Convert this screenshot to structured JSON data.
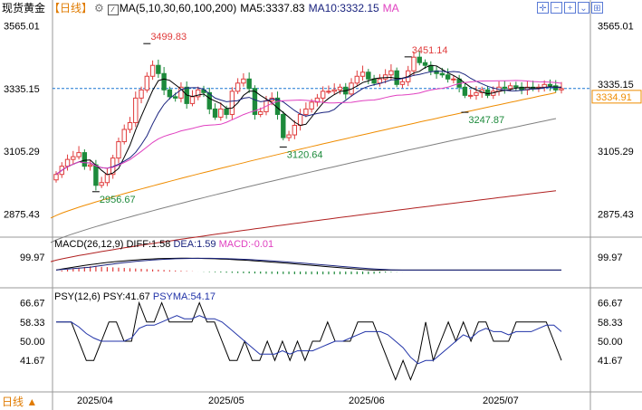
{
  "header": {
    "symbol": "现货黄金",
    "period_tag": "【日线】",
    "ma_label": "MA(5,10,30,60,100,200)",
    "ma5": "MA5:3337.83",
    "ma10": "MA10:3332.15",
    "ma_more": "MA",
    "icons": [
      "crosshair-icon",
      "minus-icon",
      "plus-icon",
      "dropdown-icon",
      "grid-icon"
    ]
  },
  "colors": {
    "up": "#e03c3c",
    "down": "#1d8a3b",
    "ma5": "#000000",
    "ma10": "#1a237e",
    "ma30": "#e040c0",
    "ma60": "#ef8c00",
    "ma100": "#808080",
    "ma200": "#b02020",
    "psy": "#000000",
    "psyma": "#2133a8",
    "dea": "#1a237e",
    "diff": "#000000"
  },
  "price_axis": {
    "ticks": [
      "3565.01",
      "3335.15",
      "3105.29",
      "2875.43"
    ],
    "current": "3334.91",
    "ref": "3335.15"
  },
  "annotations": {
    "high1": "3499.83",
    "high2": "3451.14",
    "low1": "2956.67",
    "low2": "3120.64",
    "low3": "3247.87"
  },
  "macd": {
    "label": "MACD(26,12,9)",
    "diff": "DIFF:1.58",
    "dea": "DEA:1.59",
    "macd": "MACD:-0.01",
    "tick": "99.97"
  },
  "psy": {
    "label": "PSY(12,6)",
    "psy": "PSY:41.67",
    "psyma": "PSYMA:54.17",
    "ticks": [
      "66.67",
      "58.33",
      "50.00",
      "41.67"
    ]
  },
  "x_axis": [
    "2025/04",
    "2025/05",
    "2025/06",
    "2025/07"
  ],
  "period_selector": "日线 ▲",
  "chart_data": {
    "type": "candlestick",
    "ylim": [
      2790,
      3600
    ],
    "closes": [
      3020,
      3050,
      3075,
      3085,
      3100,
      3050,
      3055,
      2980,
      2990,
      3020,
      3080,
      3140,
      3185,
      3210,
      3300,
      3330,
      3380,
      3420,
      3390,
      3330,
      3305,
      3300,
      3340,
      3280,
      3305,
      3330,
      3320,
      3260,
      3230,
      3260,
      3240,
      3325,
      3355,
      3370,
      3335,
      3240,
      3250,
      3290,
      3300,
      3240,
      3155,
      3165,
      3200,
      3240,
      3260,
      3285,
      3300,
      3325,
      3325,
      3330,
      3340,
      3315,
      3355,
      3380,
      3395,
      3370,
      3355,
      3370,
      3385,
      3400,
      3350,
      3360,
      3400,
      3450,
      3430,
      3420,
      3400,
      3390,
      3385,
      3370,
      3370,
      3340,
      3310,
      3310,
      3320,
      3330,
      3310,
      3325,
      3340,
      3335,
      3345,
      3340,
      3330,
      3340,
      3335,
      3340,
      3350,
      3345,
      3330,
      3335
    ],
    "extremes": {
      "high": 3499.83,
      "high2": 3451.14,
      "low1": 2956.67,
      "low2": 3120.64,
      "low3": 3247.87
    },
    "ma_start": {
      "ma60": 2860,
      "ma100": 2770,
      "ma200": 2700
    },
    "ma_end": {
      "ma60": 3320,
      "ma100": 3225,
      "ma200": 2960
    },
    "psy": [
      58.33,
      58.33,
      58.33,
      50,
      41.67,
      41.67,
      50,
      58.33,
      58.33,
      50,
      50,
      66.67,
      58.33,
      58.33,
      66.67,
      58.33,
      58.33,
      58.33,
      58.33,
      66.67,
      58.33,
      58.33,
      50,
      41.67,
      41.67,
      50,
      41.67,
      41.67,
      50,
      41.67,
      50,
      41.67,
      50,
      41.67,
      50,
      50,
      58.33,
      50,
      50,
      50,
      58.33,
      58.33,
      58.33,
      50,
      41.67,
      33.33,
      41.67,
      33.33,
      41.67,
      58.33,
      41.67,
      50,
      58.33,
      50,
      58.33,
      50,
      58.33,
      58.33,
      50,
      50,
      50,
      58.33,
      58.33,
      58.33,
      58.33,
      58.33,
      50,
      41.67
    ],
    "macd_diff_peak": 25,
    "psy_ylim": [
      30,
      70
    ]
  }
}
